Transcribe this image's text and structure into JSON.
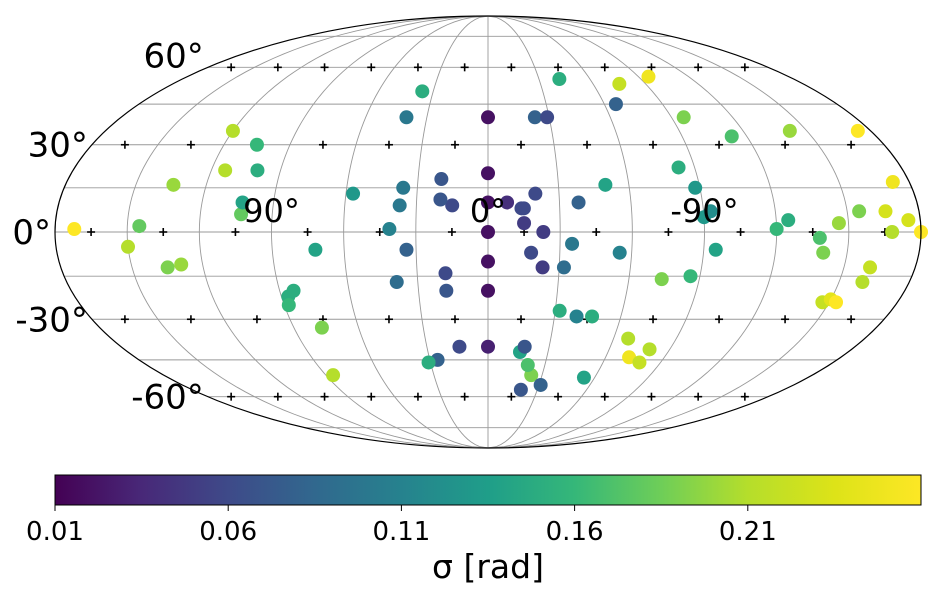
{
  "chart_data": {
    "type": "scatter",
    "projection": "mollweide",
    "title": "",
    "grid": true,
    "longitude_labels": [
      "90°",
      "0°",
      "-90°"
    ],
    "latitude_labels": [
      "60°",
      "30°",
      "0°",
      "-30°",
      "-60°"
    ],
    "colorbar": {
      "label": "σ [rad]",
      "ticks": [
        "0.01",
        "0.06",
        "0.11",
        "0.16",
        "0.21"
      ],
      "range": [
        0.01,
        0.26
      ],
      "colormap": "viridis"
    },
    "points_units": "lon_deg, lat_deg, sigma_rad",
    "points": [
      [
        -180,
        0,
        0.26
      ],
      [
        -173,
        17,
        0.25
      ],
      [
        -174,
        35,
        0.26
      ],
      [
        -166,
        7,
        0.23
      ],
      [
        -155,
        7,
        0.19
      ],
      [
        -142,
        35,
        0.2
      ],
      [
        -113,
        33,
        0.17
      ],
      [
        -96,
        40,
        0.19
      ],
      [
        -83,
        22,
        0.15
      ],
      [
        -86,
        -15,
        0.16
      ],
      [
        -90,
        5,
        0.13
      ],
      [
        -93,
        7,
        0.12
      ],
      [
        -74,
        -16,
        0.19
      ],
      [
        -55,
        -7,
        0.11
      ],
      [
        -35,
        -4,
        0.1
      ],
      [
        -32,
        -27,
        0.15
      ],
      [
        -24,
        -51,
        0.19
      ],
      [
        -21,
        -47,
        0.17
      ],
      [
        -16,
        -42,
        0.14
      ],
      [
        -147,
        -24,
        0.22
      ],
      [
        -150,
        -23,
        0.24
      ],
      [
        -153,
        -24,
        0.26
      ],
      [
        -161,
        -12,
        0.22
      ],
      [
        -160,
        -17,
        0.21
      ],
      [
        -168,
        0,
        0.21
      ],
      [
        -175,
        4,
        0.23
      ],
      [
        -138,
        -2,
        0.17
      ],
      [
        -146,
        3,
        0.2
      ],
      [
        -140,
        -7,
        0.19
      ],
      [
        -120,
        1,
        0.16
      ],
      [
        -125,
        4,
        0.15
      ],
      [
        -95,
        -6,
        0.14
      ],
      [
        -88,
        15,
        0.13
      ],
      [
        -75,
        53,
        0.22
      ],
      [
        -42,
        55,
        0.15
      ],
      [
        -50,
        16,
        0.14
      ],
      [
        -38,
        10,
        0.08
      ],
      [
        -23,
        40,
        0.08
      ],
      [
        -20,
        13,
        0.06
      ],
      [
        -23,
        0,
        0.05
      ],
      [
        -23,
        -12,
        0.05
      ],
      [
        -32,
        -12,
        0.09
      ],
      [
        -40,
        -29,
        0.11
      ],
      [
        -47,
        -29,
        0.15
      ],
      [
        -67,
        -37,
        0.21
      ],
      [
        -72,
        -44,
        0.25
      ],
      [
        -79,
        -46,
        0.22
      ],
      [
        -80,
        -41,
        0.21
      ],
      [
        -54,
        -52,
        0.14
      ],
      [
        -31,
        -55,
        0.08
      ],
      [
        -20,
        -57,
        0.07
      ],
      [
        -18,
        -7,
        0.06
      ],
      [
        -15,
        3,
        0.05
      ],
      [
        -15,
        8,
        0.06
      ],
      [
        -14,
        8,
        0.06
      ],
      [
        -8,
        10,
        0.04
      ],
      [
        0,
        0,
        0.02
      ],
      [
        0,
        10,
        0.02
      ],
      [
        0,
        20,
        0.02
      ],
      [
        0,
        -10,
        0.02
      ],
      [
        0,
        -20,
        0.02
      ],
      [
        0,
        40,
        0.02
      ],
      [
        0,
        -40,
        0.03
      ],
      [
        14,
        -40,
        0.06
      ],
      [
        -18,
        -40,
        0.07
      ],
      [
        -29,
        40,
        0.06
      ],
      [
        -66,
        45,
        0.08
      ],
      [
        -96,
        56,
        0.25
      ],
      [
        15,
        9,
        0.06
      ],
      [
        20,
        11,
        0.07
      ],
      [
        20,
        18,
        0.07
      ],
      [
        18,
        -14,
        0.06
      ],
      [
        18,
        -20,
        0.07
      ],
      [
        26,
        -45,
        0.08
      ],
      [
        31,
        -46,
        0.15
      ],
      [
        36,
        50,
        0.15
      ],
      [
        40,
        40,
        0.1
      ],
      [
        36,
        15,
        0.1
      ],
      [
        37,
        9,
        0.1
      ],
      [
        41,
        1,
        0.11
      ],
      [
        34,
        -6,
        0.08
      ],
      [
        39,
        -17,
        0.09
      ],
      [
        57,
        13,
        0.13
      ],
      [
        72,
        -6,
        0.14
      ],
      [
        87,
        -22,
        0.15
      ],
      [
        84,
        -20,
        0.15
      ],
      [
        88,
        -25,
        0.16
      ],
      [
        86,
        -51,
        0.21
      ],
      [
        77,
        -33,
        0.19
      ],
      [
        103,
        6,
        0.18
      ],
      [
        103,
        10,
        0.14
      ],
      [
        100,
        21,
        0.15
      ],
      [
        105,
        30,
        0.16
      ],
      [
        120,
        35,
        0.21
      ],
      [
        114,
        21,
        0.21
      ],
      [
        134,
        16,
        0.2
      ],
      [
        135,
        -12,
        0.19
      ],
      [
        145,
        2,
        0.18
      ],
      [
        172,
        1,
        0.26
      ],
      [
        129,
        -11,
        0.2
      ],
      [
        150,
        -5,
        0.21
      ]
    ]
  }
}
